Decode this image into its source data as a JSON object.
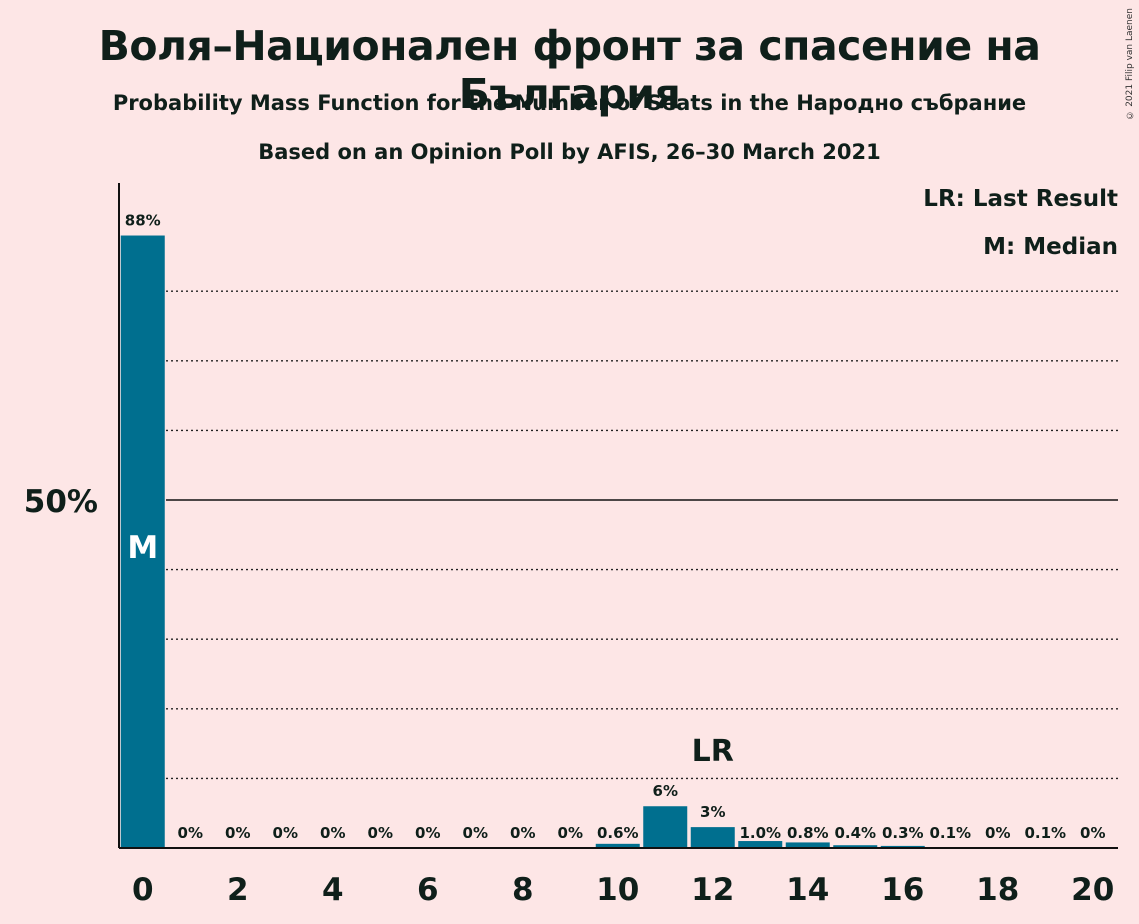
{
  "chart_data": {
    "type": "bar",
    "title": "Воля–Национален фронт за спасение на България",
    "subtitle": "Probability Mass Function for the Number of Seats in the Народно събрание",
    "subtitle2": "Based on an Opinion Poll by AFIS, 26–30 March 2021",
    "copyright": "© 2021 Filip van Laenen",
    "legend": {
      "placement": "top-right",
      "lr": "LR: Last Result",
      "m": "M: Median"
    },
    "x": [
      0,
      1,
      2,
      3,
      4,
      5,
      6,
      7,
      8,
      9,
      10,
      11,
      12,
      13,
      14,
      15,
      16,
      17,
      18,
      19,
      20
    ],
    "values": [
      88,
      0,
      0,
      0,
      0,
      0,
      0,
      0,
      0,
      0,
      0.6,
      6,
      3,
      1.0,
      0.8,
      0.4,
      0.3,
      0.1,
      0,
      0.1,
      0
    ],
    "value_labels": [
      "88%",
      "0%",
      "0%",
      "0%",
      "0%",
      "0%",
      "0%",
      "0%",
      "0%",
      "0%",
      "0.6%",
      "6%",
      "3%",
      "1.0%",
      "0.8%",
      "0.4%",
      "0.3%",
      "0.1%",
      "0%",
      "0.1%",
      "0%"
    ],
    "x_tick_labels": [
      "0",
      "2",
      "4",
      "6",
      "8",
      "10",
      "12",
      "14",
      "16",
      "18",
      "20"
    ],
    "x_tick_values": [
      0,
      2,
      4,
      6,
      8,
      10,
      12,
      14,
      16,
      18,
      20
    ],
    "y_tick_label": "50%",
    "y_tick_value": 50,
    "ylim": [
      0,
      96
    ],
    "gridlines_dotted": [
      10,
      20,
      30,
      40,
      60,
      70,
      80
    ],
    "median_x": 0,
    "median_marker": "M",
    "last_result_x": 12,
    "last_result_marker": "LR",
    "bar_color": "#006f8f",
    "background_color": "#fde6e6"
  }
}
